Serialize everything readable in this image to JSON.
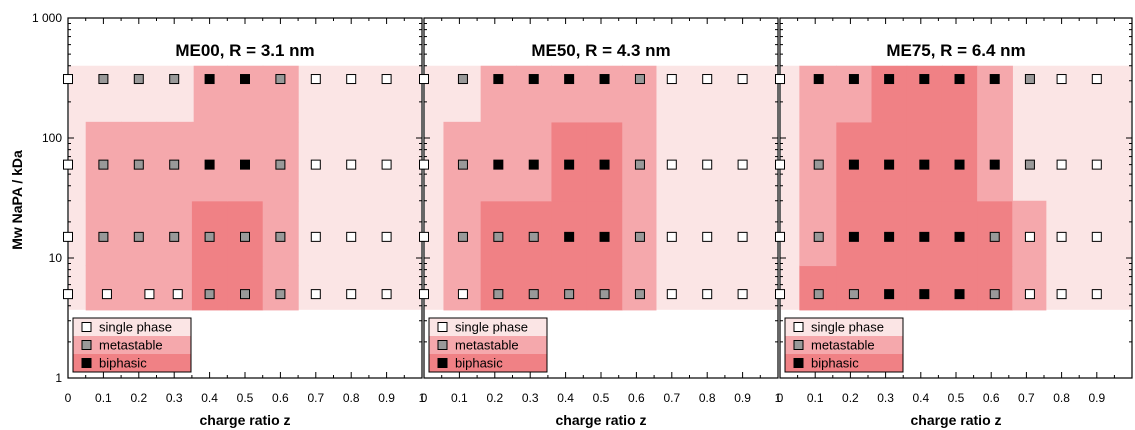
{
  "chart_data": {
    "type": "scatter",
    "ylabel": "Mw NaPA / kDa",
    "xlabel": "charge ratio z",
    "y_scale": "log",
    "ylim": [
      1,
      1000
    ],
    "xlim": [
      0,
      1
    ],
    "x_ticks": [
      "0",
      "0.1",
      "0.2",
      "0.3",
      "0.4",
      "0.5",
      "0.6",
      "0.7",
      "0.8",
      "0.9",
      "1"
    ],
    "y_ticks": [
      "1",
      "10",
      "100",
      "1 000"
    ],
    "y_levels": [
      5,
      15,
      60,
      310
    ],
    "colors": {
      "single": "#fbe5e5",
      "metastable": "#f5a8ac",
      "biphasic": "#f08185",
      "marker_single": "#ffffff",
      "marker_metastable": "#999999",
      "marker_biphasic": "#000000"
    },
    "legend": {
      "position": "bottom-left",
      "items": [
        {
          "label": "single phase",
          "state": "single"
        },
        {
          "label": "metastable",
          "state": "metastable"
        },
        {
          "label": "biphasic",
          "state": "biphasic"
        }
      ]
    },
    "panels": [
      {
        "title": "ME00, R = 3.1 nm",
        "points": [
          {
            "y": 310,
            "x": [
              0,
              0.1,
              0.2,
              0.3,
              0.4,
              0.5,
              0.6,
              0.7,
              0.8,
              0.9
            ],
            "states": [
              "s",
              "m",
              "m",
              "m",
              "b",
              "b",
              "m",
              "s",
              "s",
              "s"
            ]
          },
          {
            "y": 60,
            "x": [
              0,
              0.1,
              0.2,
              0.3,
              0.4,
              0.5,
              0.6,
              0.7,
              0.8,
              0.9
            ],
            "states": [
              "s",
              "m",
              "m",
              "m",
              "b",
              "b",
              "m",
              "s",
              "s",
              "s"
            ]
          },
          {
            "y": 15,
            "x": [
              0,
              0.1,
              0.2,
              0.3,
              0.4,
              0.5,
              0.6,
              0.7,
              0.8,
              0.9
            ],
            "states": [
              "s",
              "m",
              "m",
              "m",
              "m",
              "m",
              "m",
              "s",
              "s",
              "s"
            ]
          },
          {
            "y": 5,
            "x": [
              0,
              0.11,
              0.23,
              0.31,
              0.4,
              0.5,
              0.6,
              0.7,
              0.8,
              0.9
            ],
            "states": [
              "s",
              "s",
              "s",
              "s",
              "m",
              "m",
              "m",
              "s",
              "s",
              "s"
            ]
          }
        ]
      },
      {
        "title": "ME50, R = 4.3 nm",
        "points": [
          {
            "y": 310,
            "x": [
              0,
              0.11,
              0.21,
              0.31,
              0.41,
              0.51,
              0.61,
              0.7,
              0.8,
              0.9
            ],
            "states": [
              "s",
              "m",
              "b",
              "b",
              "b",
              "b",
              "m",
              "s",
              "s",
              "s"
            ]
          },
          {
            "y": 60,
            "x": [
              0,
              0.11,
              0.21,
              0.31,
              0.41,
              0.51,
              0.61,
              0.7,
              0.8,
              0.9
            ],
            "states": [
              "s",
              "m",
              "b",
              "b",
              "b",
              "b",
              "m",
              "s",
              "s",
              "s"
            ]
          },
          {
            "y": 15,
            "x": [
              0,
              0.11,
              0.21,
              0.31,
              0.41,
              0.51,
              0.61,
              0.7,
              0.8,
              0.9
            ],
            "states": [
              "s",
              "m",
              "m",
              "m",
              "b",
              "b",
              "m",
              "s",
              "s",
              "s"
            ]
          },
          {
            "y": 5,
            "x": [
              0,
              0.11,
              0.21,
              0.31,
              0.41,
              0.51,
              0.61,
              0.7,
              0.8,
              0.9
            ],
            "states": [
              "s",
              "s",
              "m",
              "m",
              "m",
              "m",
              "m",
              "s",
              "s",
              "s"
            ]
          }
        ]
      },
      {
        "title": "ME75, R = 6.4 nm",
        "points": [
          {
            "y": 310,
            "x": [
              0,
              0.11,
              0.21,
              0.31,
              0.41,
              0.51,
              0.61,
              0.71,
              0.8,
              0.9
            ],
            "states": [
              "s",
              "b",
              "b",
              "b",
              "b",
              "b",
              "b",
              "m",
              "s",
              "s"
            ]
          },
          {
            "y": 60,
            "x": [
              0,
              0.11,
              0.21,
              0.31,
              0.41,
              0.51,
              0.61,
              0.71,
              0.8,
              0.9
            ],
            "states": [
              "s",
              "m",
              "b",
              "b",
              "b",
              "b",
              "b",
              "m",
              "s",
              "s"
            ]
          },
          {
            "y": 15,
            "x": [
              0,
              0.11,
              0.21,
              0.31,
              0.41,
              0.51,
              0.61,
              0.71,
              0.8,
              0.9
            ],
            "states": [
              "s",
              "m",
              "b",
              "b",
              "b",
              "b",
              "m",
              "s",
              "s",
              "s"
            ]
          },
          {
            "y": 5,
            "x": [
              0,
              0.11,
              0.21,
              0.31,
              0.41,
              0.51,
              0.61,
              0.71,
              0.8,
              0.9
            ],
            "states": [
              "s",
              "m",
              "m",
              "b",
              "b",
              "b",
              "m",
              "s",
              "s",
              "s"
            ]
          }
        ]
      }
    ]
  }
}
